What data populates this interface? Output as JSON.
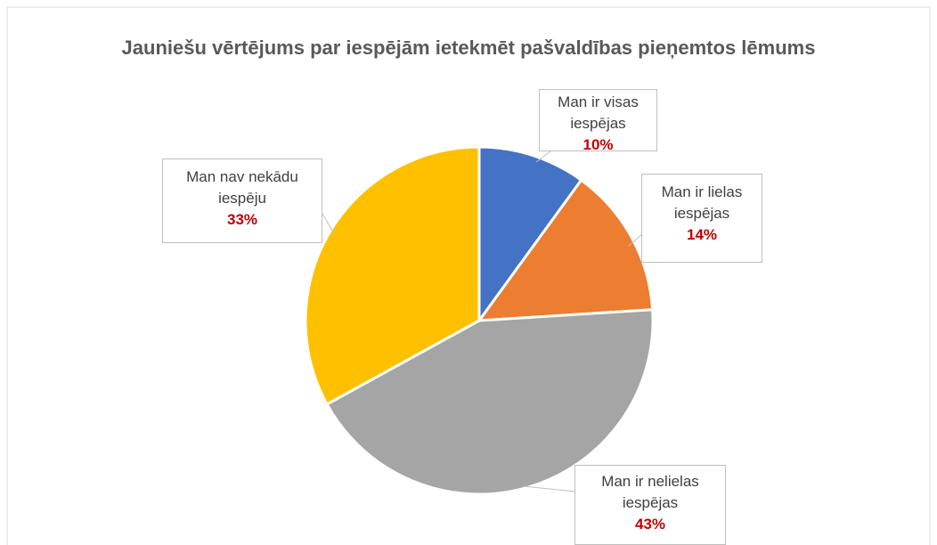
{
  "chart_data": {
    "type": "pie",
    "title": "Jauniešu vērtējums par iespējām ietekmēt pašvaldības pieņemtos lēmums",
    "categories": [
      "Man ir visas iespējas",
      "Man ir lielas iespējas",
      "Man ir nelielas iespējas",
      "Man nav nekādu iespēju"
    ],
    "values": [
      10,
      14,
      43,
      33
    ],
    "value_labels": [
      "10%",
      "14%",
      "43%",
      "33%"
    ],
    "colors": [
      "#4472c4",
      "#ed7d31",
      "#a5a5a5",
      "#ffc000"
    ]
  }
}
